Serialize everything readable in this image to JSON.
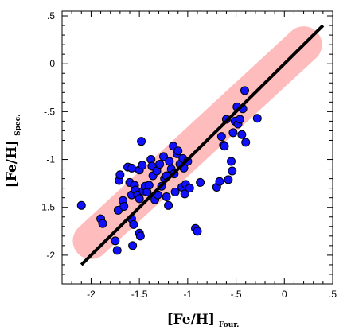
{
  "chart_data": {
    "type": "scatter",
    "title": "",
    "xlabel": {
      "main": "[Fe/H]",
      "sub": "Four."
    },
    "ylabel": {
      "main": "[Fe/H]",
      "sub": "Spec."
    },
    "xlim": [
      -2.3,
      0.5
    ],
    "ylim": [
      -2.3,
      0.55
    ],
    "xticks": [
      -2,
      -1.5,
      -1,
      -0.5,
      0,
      0.5
    ],
    "xtick_labels": [
      "-2",
      "-1.5",
      "-1",
      "-.5",
      "0",
      ".5"
    ],
    "yticks": [
      -2,
      -1.5,
      -1,
      -0.5,
      0,
      0.5
    ],
    "ytick_labels": [
      "-2",
      "-1.5",
      "-1",
      "-.5",
      "0",
      ".5"
    ],
    "grid": false,
    "legend": "none",
    "colors": {
      "points": "#1010ff",
      "point_edge": "#000000",
      "line": "#000000",
      "band": "#ffbcbc"
    },
    "fit_line": {
      "x": [
        -2.1,
        0.4
      ],
      "y": [
        -2.1,
        0.4
      ]
    },
    "band": {
      "x": [
        -2.0,
        0.2
      ],
      "y": [
        -1.85,
        0.2
      ]
    },
    "points": [
      {
        "x": -2.1,
        "y": -1.48
      },
      {
        "x": -1.9,
        "y": -1.62
      },
      {
        "x": -1.88,
        "y": -1.67
      },
      {
        "x": -1.75,
        "y": -1.85
      },
      {
        "x": -1.73,
        "y": -1.95
      },
      {
        "x": -1.72,
        "y": -1.53
      },
      {
        "x": -1.71,
        "y": -1.22
      },
      {
        "x": -1.7,
        "y": -1.16
      },
      {
        "x": -1.67,
        "y": -1.43
      },
      {
        "x": -1.66,
        "y": -1.49
      },
      {
        "x": -1.62,
        "y": -1.08
      },
      {
        "x": -1.6,
        "y": -1.24
      },
      {
        "x": -1.58,
        "y": -1.62
      },
      {
        "x": -1.58,
        "y": -1.37
      },
      {
        "x": -1.58,
        "y": -1.09
      },
      {
        "x": -1.57,
        "y": -1.9
      },
      {
        "x": -1.56,
        "y": -1.68
      },
      {
        "x": -1.55,
        "y": -1.27
      },
      {
        "x": -1.54,
        "y": -1.32
      },
      {
        "x": -1.52,
        "y": -1.37
      },
      {
        "x": -1.5,
        "y": -1.11
      },
      {
        "x": -1.5,
        "y": -1.41
      },
      {
        "x": -1.5,
        "y": -1.77
      },
      {
        "x": -1.49,
        "y": -1.8
      },
      {
        "x": -1.48,
        "y": -0.81
      },
      {
        "x": -1.47,
        "y": -1.06
      },
      {
        "x": -1.46,
        "y": -1.33
      },
      {
        "x": -1.44,
        "y": -1.28
      },
      {
        "x": -1.42,
        "y": -1.34
      },
      {
        "x": -1.4,
        "y": -1.27
      },
      {
        "x": -1.38,
        "y": -1.0
      },
      {
        "x": -1.37,
        "y": -1.07
      },
      {
        "x": -1.36,
        "y": -1.17
      },
      {
        "x": -1.34,
        "y": -1.42
      },
      {
        "x": -1.32,
        "y": -1.12
      },
      {
        "x": -1.31,
        "y": -1.37
      },
      {
        "x": -1.29,
        "y": -1.05
      },
      {
        "x": -1.27,
        "y": -1.28
      },
      {
        "x": -1.25,
        "y": -0.97
      },
      {
        "x": -1.24,
        "y": -1.2
      },
      {
        "x": -1.22,
        "y": -1.17
      },
      {
        "x": -1.22,
        "y": -1.39
      },
      {
        "x": -1.2,
        "y": -1.48
      },
      {
        "x": -1.19,
        "y": -1.02
      },
      {
        "x": -1.17,
        "y": -1.1
      },
      {
        "x": -1.15,
        "y": -0.86
      },
      {
        "x": -1.14,
        "y": -1.15
      },
      {
        "x": -1.13,
        "y": -1.34
      },
      {
        "x": -1.11,
        "y": -0.94
      },
      {
        "x": -1.1,
        "y": -0.91
      },
      {
        "x": -1.08,
        "y": -1.05
      },
      {
        "x": -1.06,
        "y": -1.29
      },
      {
        "x": -1.05,
        "y": -0.99
      },
      {
        "x": -1.04,
        "y": -1.09
      },
      {
        "x": -1.03,
        "y": -1.36
      },
      {
        "x": -1.02,
        "y": -1.26
      },
      {
        "x": -1.0,
        "y": -1.02
      },
      {
        "x": -0.98,
        "y": -1.3
      },
      {
        "x": -0.92,
        "y": -1.72
      },
      {
        "x": -0.9,
        "y": -1.75
      },
      {
        "x": -0.87,
        "y": -1.24
      },
      {
        "x": -0.7,
        "y": -1.29
      },
      {
        "x": -0.67,
        "y": -1.23
      },
      {
        "x": -0.65,
        "y": -0.76
      },
      {
        "x": -0.63,
        "y": -0.85
      },
      {
        "x": -0.62,
        "y": -0.86
      },
      {
        "x": -0.6,
        "y": -0.58
      },
      {
        "x": -0.58,
        "y": -1.21
      },
      {
        "x": -0.55,
        "y": -1.02
      },
      {
        "x": -0.54,
        "y": -1.12
      },
      {
        "x": -0.53,
        "y": -0.72
      },
      {
        "x": -0.51,
        "y": -0.6
      },
      {
        "x": -0.49,
        "y": -0.45
      },
      {
        "x": -0.48,
        "y": -0.63
      },
      {
        "x": -0.46,
        "y": -0.58
      },
      {
        "x": -0.44,
        "y": -0.74
      },
      {
        "x": -0.43,
        "y": -0.47
      },
      {
        "x": -0.41,
        "y": -0.28
      },
      {
        "x": -0.4,
        "y": -0.82
      },
      {
        "x": -0.28,
        "y": -0.57
      }
    ]
  }
}
